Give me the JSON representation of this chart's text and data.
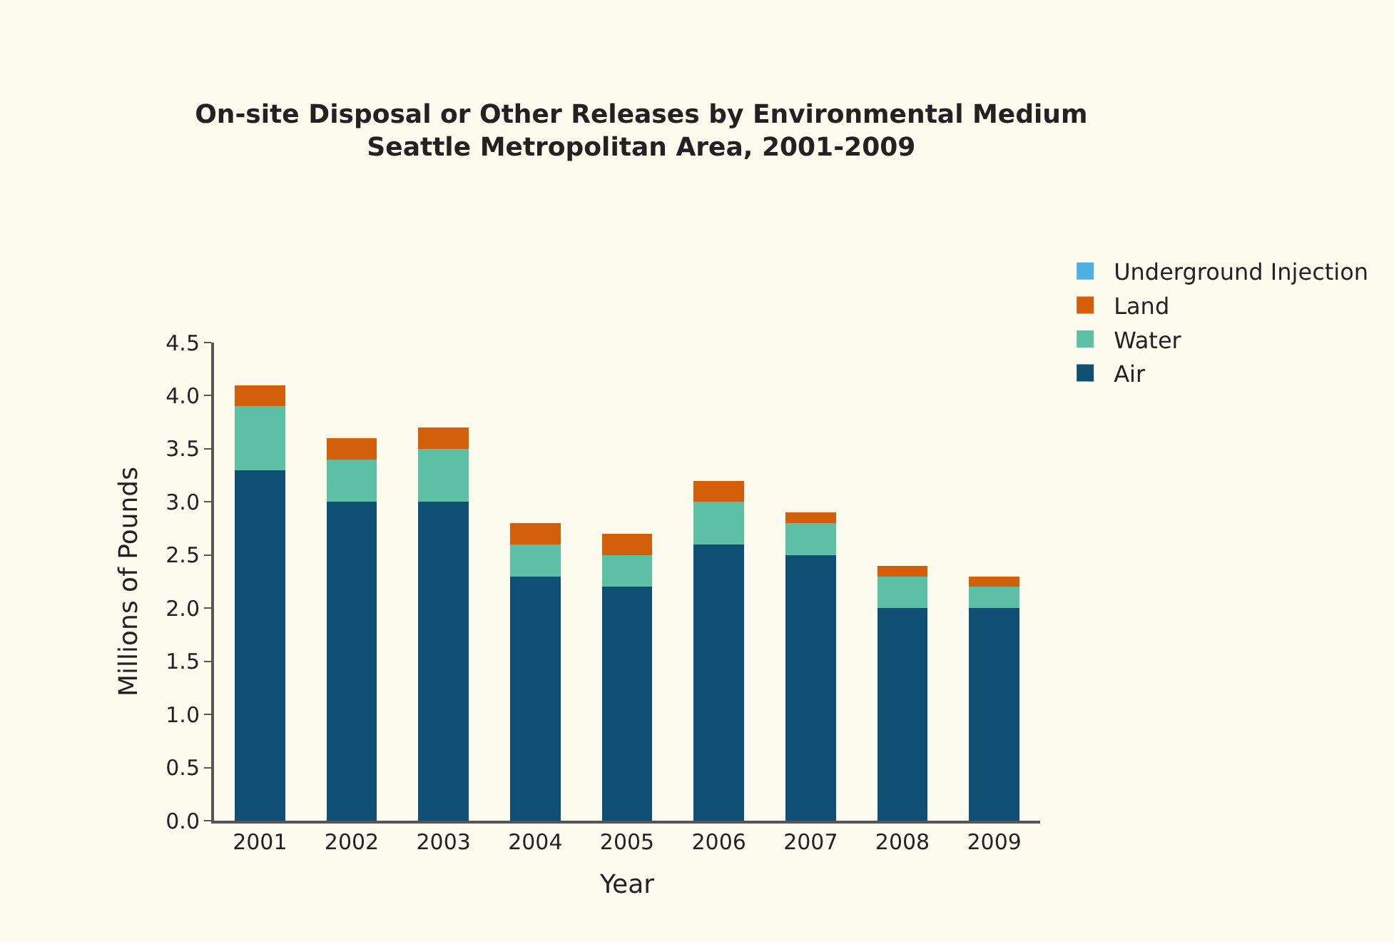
{
  "chart_data": {
    "type": "bar",
    "title": "On-site Disposal or Other Releases by Environmental Medium\nSeattle Metropolitan Area, 2001-2009",
    "xlabel": "Year",
    "ylabel": "Millions of Pounds",
    "categories": [
      "2001",
      "2002",
      "2003",
      "2004",
      "2005",
      "2006",
      "2007",
      "2008",
      "2009"
    ],
    "stacked": true,
    "series": [
      {
        "name": "Air",
        "color": "#0e4f73",
        "values": [
          3.3,
          3.0,
          3.0,
          2.3,
          2.2,
          2.6,
          2.5,
          2.0,
          2.0
        ]
      },
      {
        "name": "Water",
        "color": "#5dbfa3",
        "values": [
          0.6,
          0.4,
          0.5,
          0.3,
          0.3,
          0.4,
          0.3,
          0.3,
          0.2
        ]
      },
      {
        "name": "Land",
        "color": "#d35f0b",
        "values": [
          0.2,
          0.2,
          0.2,
          0.2,
          0.2,
          0.2,
          0.1,
          0.1,
          0.1
        ]
      },
      {
        "name": "Underground Injection",
        "color": "#4fb0e3",
        "values": [
          0,
          0,
          0,
          0,
          0,
          0,
          0,
          0,
          0
        ]
      }
    ],
    "ylim": [
      0,
      4.5
    ],
    "yticks": [
      {
        "value": 0,
        "label": "0.0"
      },
      0.5,
      {
        "value": 1,
        "label": "1.0"
      },
      1.5,
      {
        "value": 2,
        "label": "2.0"
      },
      2.5,
      {
        "value": 3,
        "label": "3.0"
      },
      3.5,
      {
        "value": 4,
        "label": "4.0"
      },
      4.5
    ],
    "grid": false,
    "legend": "top right"
  }
}
